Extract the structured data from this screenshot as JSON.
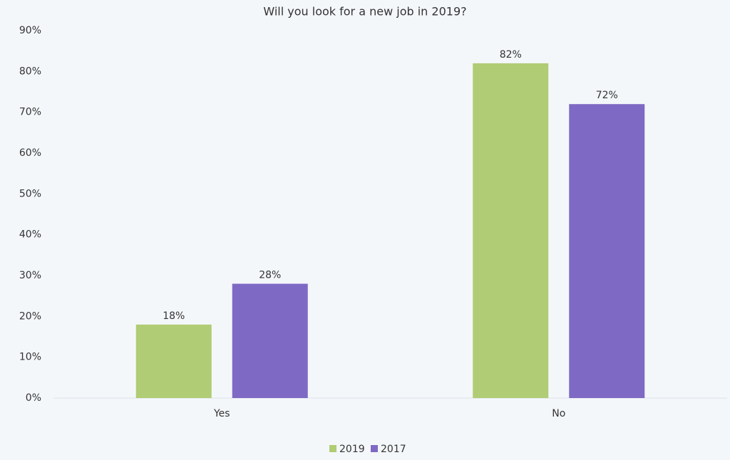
{
  "chart_data": {
    "type": "bar",
    "title": "Will you look for a new job in 2019?",
    "categories": [
      "Yes",
      "No"
    ],
    "series": [
      {
        "name": "2019",
        "color": "#b0cc74",
        "values": [
          18,
          82
        ],
        "value_labels": [
          "18%",
          "82%"
        ]
      },
      {
        "name": "2017",
        "color": "#7e6ac4",
        "values": [
          28,
          72
        ],
        "value_labels": [
          "28%",
          "72%"
        ]
      }
    ],
    "ylim": [
      0,
      90
    ],
    "yticks": [
      {
        "value": 0,
        "label": "0%"
      },
      {
        "value": 10,
        "label": "10%"
      },
      {
        "value": 20,
        "label": "20%"
      },
      {
        "value": 30,
        "label": "30%"
      },
      {
        "value": 40,
        "label": "40%"
      },
      {
        "value": 50,
        "label": "50%"
      },
      {
        "value": 60,
        "label": "60%"
      },
      {
        "value": 70,
        "label": "70%"
      },
      {
        "value": 80,
        "label": "80%"
      },
      {
        "value": 90,
        "label": "90%"
      }
    ],
    "grid": false,
    "legend": "bottom"
  }
}
